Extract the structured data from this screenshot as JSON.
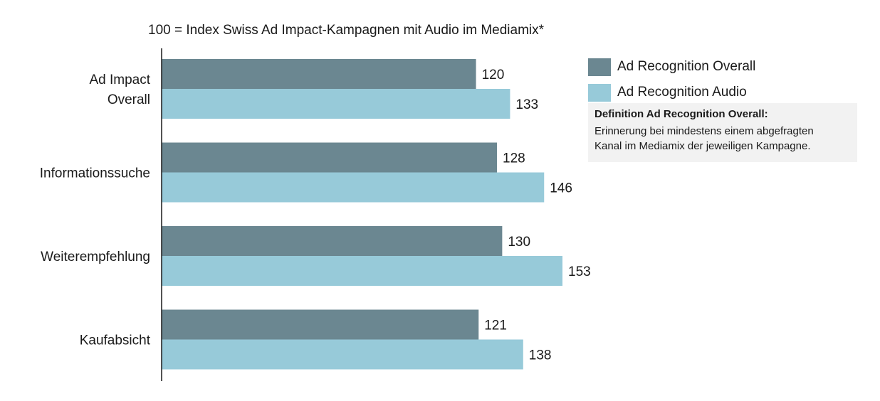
{
  "chart_data": {
    "type": "bar",
    "orientation": "horizontal",
    "title": "",
    "subtitle": "100 = Index Swiss Ad Impact-Kampagnen mit Audio im Mediamix*",
    "categories": [
      [
        "Ad Impact",
        "Overall"
      ],
      [
        "Informationssuche"
      ],
      [
        "Weiterempfehlung"
      ],
      [
        "Kaufabsicht"
      ]
    ],
    "series": [
      {
        "name": "Ad Recognition Overall",
        "color": "#6b8791",
        "values": [
          120,
          128,
          130,
          121
        ]
      },
      {
        "name": "Ad Recognition Audio",
        "color": "#97cad9",
        "values": [
          133,
          146,
          153,
          138
        ]
      }
    ],
    "xlim": [
      0,
      160
    ],
    "grid": false,
    "data_labels": true,
    "legend_position": "top-right"
  },
  "definition": {
    "title": "Definition Ad Recognition Overall:",
    "lines": [
      "Erinnerung bei mindestens einem abgefragten",
      "Kanal im Mediamix der jeweiligen Kampagne."
    ]
  }
}
